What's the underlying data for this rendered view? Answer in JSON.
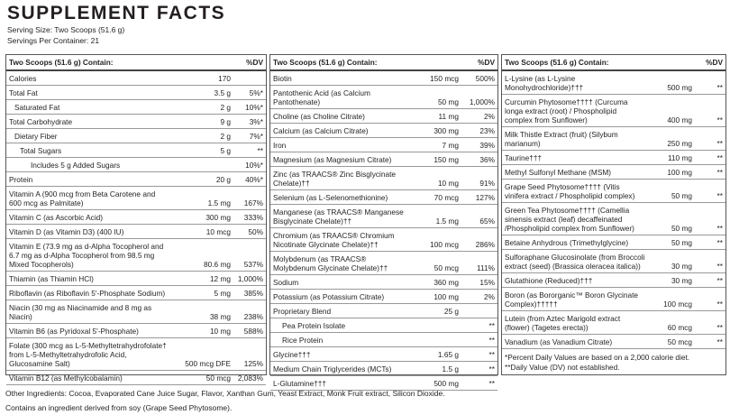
{
  "header": {
    "title": "SUPPLEMENT FACTS",
    "serving_size": "Serving Size: Two Scoops (51.6 g)",
    "servings_per_container": "Servings Per Container: 21"
  },
  "columns": [
    {
      "heading": "Two Scoops (51.6 g) Contain:",
      "dv_heading": "%DV",
      "rows": [
        {
          "name": "Calories",
          "amount": "170"
        },
        {
          "name": "Total Fat",
          "amount": "3.5 g",
          "dv": "5%*"
        },
        {
          "name": "Saturated Fat",
          "amount": "2 g",
          "dv": "10%*"
        },
        {
          "name": "Total Carbohydrate",
          "amount": "9 g",
          "dv": "3%*"
        },
        {
          "name": "Dietary Fiber",
          "amount": "2 g",
          "dv": "7%*"
        },
        {
          "name": "Total Sugars",
          "amount": "5 g",
          "dv": "**"
        },
        {
          "name": "Includes 5 g Added Sugars",
          "dv": "10%*"
        },
        {
          "name": "Protein",
          "amount": "20 g",
          "dv": "40%*"
        },
        {
          "name": "Vitamin A (900 mcg from Beta Carotene and 600 mcg as Palmitate)",
          "amount": "1.5 mg",
          "dv": "167%"
        },
        {
          "name": "Vitamin C (as Ascorbic Acid)",
          "amount": "300 mg",
          "dv": "333%"
        },
        {
          "name": "Vitamin D (as Vitamin D3) (400 IU)",
          "amount": "10 mcg",
          "dv": "50%"
        },
        {
          "name": "Vitamin E (73.9 mg as d-Alpha Tocopherol and 6.7 mg as d-Alpha Tocopherol from 98.5 mg Mixed Tocopherols)",
          "amount": "80.6 mg",
          "dv": "537%"
        },
        {
          "name": "Thiamin (as Thiamin HCl)",
          "amount": "12 mg",
          "dv": "1,000%"
        },
        {
          "name": "Riboflavin (as Riboflavin 5'-Phosphate Sodium)",
          "amount": "5 mg",
          "dv": "385%"
        },
        {
          "name": "Niacin (30 mg as Niacinamide and 8 mg as Niacin)",
          "amount": "38 mg",
          "dv": "238%"
        },
        {
          "name": "Vitamin B6 (as Pyridoxal 5'-Phosphate)",
          "amount": "10 mg",
          "dv": "588%"
        },
        {
          "name": "Folate (300 mcg as L-5-Methyltetrahydrofolate† from L-5-Methyltetrahydrofolic Acid, Glucosamine Salt)",
          "amount": "500 mcg DFE",
          "dv": "125%"
        },
        {
          "name": "Vitamin B12 (as Methylcobalamin)",
          "amount": "50 mcg",
          "dv": "2,083%"
        }
      ]
    },
    {
      "heading": "Two Scoops (51.6 g) Contain:",
      "dv_heading": "%DV",
      "rows": [
        {
          "name": "Biotin",
          "amount": "150 mcg",
          "dv": "500%"
        },
        {
          "name": "Pantothenic Acid (as Calcium Pantothenate)",
          "amount": "50 mg",
          "dv": "1,000%"
        },
        {
          "name": "Choline (as Choline Citrate)",
          "amount": "11 mg",
          "dv": "2%"
        },
        {
          "name": "Calcium (as Calcium Citrate)",
          "amount": "300 mg",
          "dv": "23%"
        },
        {
          "name": "Iron",
          "amount": "7 mg",
          "dv": "39%"
        },
        {
          "name": "Magnesium (as Magnesium Citrate)",
          "amount": "150 mg",
          "dv": "36%"
        },
        {
          "name": "Zinc (as TRAACS® Zinc Bisglycinate Chelate)††",
          "amount": "10 mg",
          "dv": "91%"
        },
        {
          "name": "Selenium (as L-Selenomethionine)",
          "amount": "70 mcg",
          "dv": "127%"
        },
        {
          "name": "Manganese (as TRAACS® Manganese Bisglycinate Chelate)††",
          "amount": "1.5 mg",
          "dv": "65%"
        },
        {
          "name": "Chromium (as TRAACS® Chromium Nicotinate Glycinate Chelate)††",
          "amount": "100 mcg",
          "dv": "286%"
        },
        {
          "name": "Molybdenum (as TRAACS® Molybdenum Glycinate Chelate)††",
          "amount": "50 mcg",
          "dv": "111%"
        },
        {
          "name": "Sodium",
          "amount": "360 mg",
          "dv": "15%"
        },
        {
          "name": "Potassium (as Potassium Citrate)",
          "amount": "100 mg",
          "dv": "2%"
        },
        {
          "name": "Proprietary Blend",
          "amount": "25 g"
        },
        {
          "name": "Pea Protein Isolate",
          "dv": "**"
        },
        {
          "name": "Rice Protein",
          "dv": "**"
        },
        {
          "name": "Glycine†††",
          "amount": "1.65 g",
          "dv": "**"
        },
        {
          "name": "Medium Chain Triglycerides (MCTs)",
          "amount": "1.5 g",
          "dv": "**"
        },
        {
          "name": "L-Glutamine†††",
          "amount": "500 mg",
          "dv": "**"
        }
      ]
    },
    {
      "heading": "Two Scoops (51.6 g) Contain:",
      "dv_heading": "%DV",
      "rows": [
        {
          "name": "L-Lysine (as L-Lysine Monohydrochloride)†††",
          "amount": "500 mg",
          "dv": "**"
        },
        {
          "name": "Curcumin Phytosome†††† (Curcuma longa extract (root) / Phospholipid complex from Sunflower)",
          "amount": "400 mg",
          "dv": "**"
        },
        {
          "name": "Milk Thistle Extract (fruit) (Silybum marianum)",
          "amount": "250 mg",
          "dv": "**"
        },
        {
          "name": "Taurine†††",
          "amount": "110 mg",
          "dv": "**"
        },
        {
          "name": "Methyl Sulfonyl Methane (MSM)",
          "amount": "100 mg",
          "dv": "**"
        },
        {
          "name": "Grape Seed Phytosome†††† (Vitis vinifera extract / Phospholipid complex)",
          "amount": "50 mg",
          "dv": "**"
        },
        {
          "name": "Green Tea Phytosome†††† (Camellia sinensis extract (leaf) decaffeinated /Phospholipid complex from Sunflower)",
          "amount": "50 mg",
          "dv": "**"
        },
        {
          "name": "Betaine Anhydrous (Trimethylglycine)",
          "amount": "50 mg",
          "dv": "**"
        },
        {
          "name": "Sulforaphane Glucosinolate (from Broccoli extract (seed) (Brassica oleracea italica))",
          "amount": "30 mg",
          "dv": "**"
        },
        {
          "name": "Glutathione (Reduced)†††",
          "amount": "30 mg",
          "dv": "**"
        },
        {
          "name": "Boron (as Bororganic™ Boron Glycinate Complex)†††††",
          "amount": "100 mcg",
          "dv": "**"
        },
        {
          "name": "Lutein (from Aztec Marigold extract (flower) (Tagetes erecta))",
          "amount": "60 mcg",
          "dv": "**"
        },
        {
          "name": "Vanadium (as Vanadium Citrate)",
          "amount": "50 mcg",
          "dv": "**"
        }
      ],
      "footnotes": [
        "*Percent Daily Values are based on a 2,000 calorie diet.",
        "**Daily Value (DV) not established."
      ]
    }
  ],
  "footer": [
    "Other Ingredients: Cocoa, Evaporated Cane Juice Sugar, Flavor, Xanthan Gum, Yeast Extract, Monk Fruit extract, Silicon Dioxide.",
    "Contains an ingredient derived from soy (Grape Seed Phytosome)."
  ]
}
